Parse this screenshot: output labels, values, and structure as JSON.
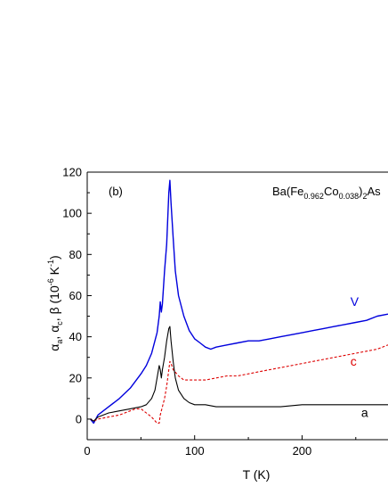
{
  "chart_data": {
    "type": "line",
    "panel_label": "(b)",
    "compound": {
      "prefix": "Ba(Fe",
      "s1": "0.962",
      "mid": "Co",
      "s2": "0.038",
      "close": ")",
      "s3": "2",
      "suffix": "As"
    },
    "xlabel": "T (K)",
    "ylabel": {
      "alpha": "α",
      "a": "a",
      "comma1": ", ",
      "c": "c",
      "beta": ", β (10",
      "exp": "-6",
      "unit": " K",
      "exp2": "-1",
      "close": ")"
    },
    "xlim": [
      0,
      280
    ],
    "ylim": [
      -10,
      120
    ],
    "xticks": [
      0,
      100,
      200
    ],
    "yticks": [
      0,
      20,
      40,
      60,
      80,
      100,
      120
    ],
    "series": [
      {
        "name": "V",
        "color": "#0000dd",
        "style": "solid",
        "label_x": 245,
        "label_y": 55,
        "x": [
          3,
          6,
          10,
          15,
          20,
          30,
          40,
          50,
          55,
          60,
          65,
          67,
          68,
          69,
          70,
          72,
          74,
          76,
          77,
          78,
          80,
          82,
          85,
          90,
          95,
          100,
          105,
          110,
          115,
          120,
          130,
          140,
          150,
          160,
          170,
          180,
          190,
          200,
          210,
          220,
          230,
          240,
          250,
          260,
          270,
          280
        ],
        "y": [
          0,
          -2,
          2,
          4,
          6,
          10,
          15,
          22,
          26,
          32,
          42,
          50,
          57,
          52,
          56,
          72,
          85,
          110,
          116,
          105,
          88,
          72,
          60,
          50,
          43,
          39,
          37,
          35,
          34,
          35,
          36,
          37,
          38,
          38,
          39,
          40,
          41,
          42,
          43,
          44,
          45,
          46,
          47,
          48,
          50,
          51
        ]
      },
      {
        "name": "c",
        "color": "#dd0000",
        "style": "dashed",
        "label_x": 245,
        "label_y": 26,
        "x": [
          3,
          6,
          10,
          20,
          30,
          40,
          45,
          50,
          55,
          60,
          65,
          67,
          68,
          70,
          72,
          74,
          76,
          77,
          78,
          80,
          85,
          90,
          100,
          110,
          120,
          130,
          140,
          150,
          160,
          170,
          180,
          190,
          200,
          210,
          220,
          230,
          240,
          250,
          260,
          270,
          280
        ],
        "y": [
          0,
          -1,
          0,
          1,
          2,
          4,
          5,
          5,
          3,
          1,
          -2,
          -2,
          2,
          6,
          10,
          16,
          24,
          28,
          27,
          24,
          21,
          19,
          19,
          19,
          20,
          21,
          21,
          22,
          23,
          24,
          25,
          26,
          27,
          28,
          29,
          30,
          31,
          32,
          33,
          34,
          36
        ]
      },
      {
        "name": "a",
        "color": "#000000",
        "style": "solid",
        "label_x": 255,
        "label_y": 1,
        "x": [
          3,
          6,
          10,
          20,
          30,
          40,
          50,
          55,
          60,
          63,
          65,
          67,
          68,
          69,
          70,
          72,
          74,
          76,
          77,
          78,
          80,
          82,
          85,
          90,
          95,
          100,
          110,
          120,
          140,
          160,
          180,
          200,
          220,
          240,
          260,
          280
        ],
        "y": [
          0,
          -1,
          1,
          3,
          4,
          5,
          6,
          7,
          10,
          14,
          20,
          26,
          24,
          20,
          24,
          30,
          38,
          44,
          45,
          38,
          28,
          20,
          14,
          10,
          8,
          7,
          7,
          6,
          6,
          6,
          6,
          7,
          7,
          7,
          7,
          7
        ]
      }
    ]
  }
}
